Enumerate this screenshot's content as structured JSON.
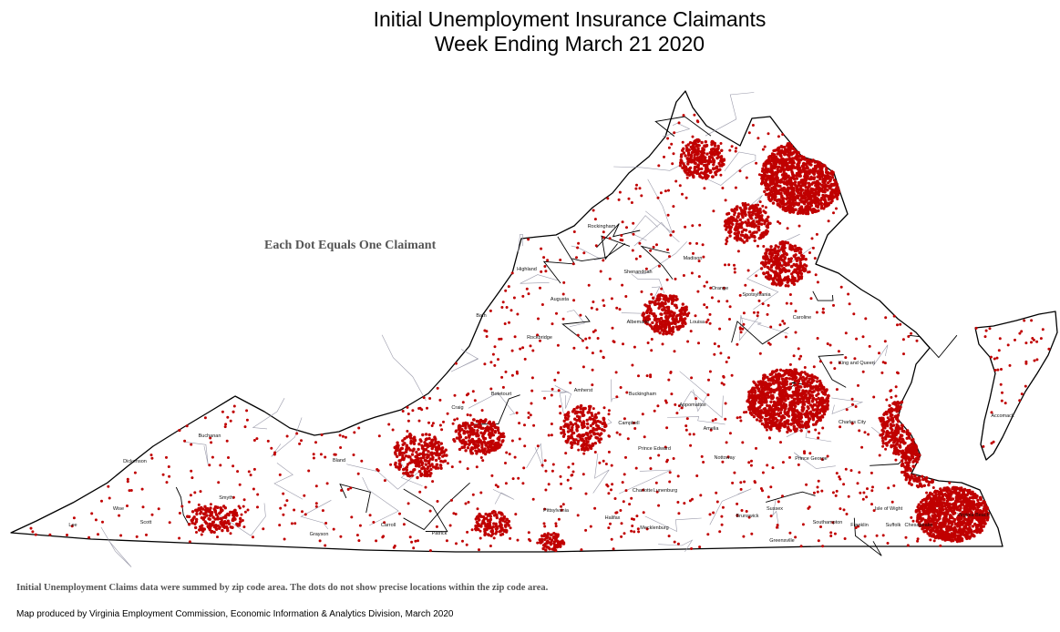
{
  "title": {
    "line1": "Initial Unemployment Insurance Claimants",
    "line2": "Week Ending March 21 2020"
  },
  "legend_note": "Each Dot Equals One Claimant",
  "footnote": "Initial Unemployment Claims data were summed by zip code area. The dots do not show precise locations within the zip code area.",
  "credit": "Map produced by Virginia Employment Commission, Economic Information & Analytics Division,  March 2020",
  "colors": {
    "dot": "#c00000",
    "border": "#000000",
    "county_line": "#9a9aaa"
  },
  "county_labels": [
    "Rockingham",
    "Shenandoah",
    "Highland",
    "Augusta",
    "Madison",
    "Orange",
    "Spotsylvania",
    "Bath",
    "Albemarle",
    "Louisa",
    "Caroline",
    "Rockbridge",
    "King and Queen",
    "Botetourt",
    "Buckingham",
    "Amherst",
    "Charles City",
    "Craig",
    "Campbell",
    "Appomattox",
    "Amelia",
    "Prince Edward",
    "Nottoway",
    "Prince George",
    "Buchanan",
    "Dickenson",
    "Bland",
    "Wise",
    "Lunenburg",
    "Charlotte",
    "Brunswick",
    "Mecklenburg",
    "Southampton",
    "Suffolk",
    "Chesapeake",
    "Virginia Beach",
    "Lee",
    "Scott",
    "Smyth",
    "Carroll",
    "Patrick",
    "Pittsylvania",
    "Halifax",
    "Greensville",
    "Franklin",
    "Grayson",
    "Isle of Wight",
    "Sussex",
    "Accomack"
  ]
}
